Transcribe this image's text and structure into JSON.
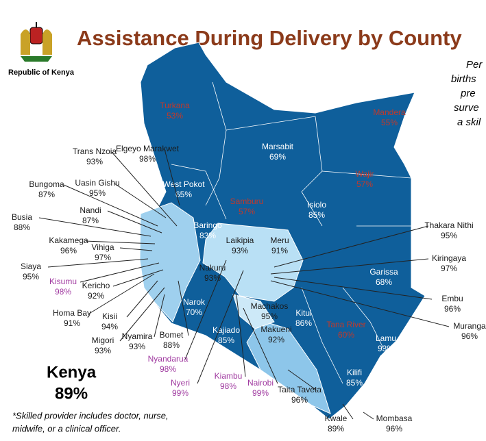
{
  "header": {
    "title": "Assistance During Delivery by County",
    "emblem_caption": "Republic of Kenya"
  },
  "side_note": [
    "Per",
    "births",
    "pre",
    "surve",
    "a skil"
  ],
  "national": {
    "name": "Kenya",
    "value": "89%"
  },
  "footnote": [
    "*Skilled provider includes doctor, nurse,",
    "midwife, or a clinical officer."
  ],
  "counties": [
    {
      "name": "Turkana",
      "value": "53%",
      "color": "#c0392b"
    },
    {
      "name": "Mandera",
      "value": "55%",
      "color": "#c0392b"
    },
    {
      "name": "Marsabit",
      "value": "69%",
      "color": "#ffffff"
    },
    {
      "name": "Wajir",
      "value": "57%",
      "color": "#c0392b"
    },
    {
      "name": "West Pokot",
      "value": "65%",
      "color": "#ffffff"
    },
    {
      "name": "Samburu",
      "value": "57%",
      "color": "#c0392b"
    },
    {
      "name": "Isiolo",
      "value": "85%",
      "color": "#ffffff"
    },
    {
      "name": "Baringo",
      "value": "83%",
      "color": "#ffffff"
    },
    {
      "name": "Laikipia",
      "value": "93%",
      "color": "#1a1a1a"
    },
    {
      "name": "Meru",
      "value": "91%",
      "color": "#1a1a1a"
    },
    {
      "name": "Nakuru",
      "value": "93%",
      "color": "#1a1a1a"
    },
    {
      "name": "Garissa",
      "value": "68%",
      "color": "#ffffff"
    },
    {
      "name": "Narok",
      "value": "70%",
      "color": "#ffffff"
    },
    {
      "name": "Machakos",
      "value": "95%",
      "color": "#1a1a1a"
    },
    {
      "name": "Kitui",
      "value": "86%",
      "color": "#ffffff"
    },
    {
      "name": "Tana River",
      "value": "60%",
      "color": "#c0392b"
    },
    {
      "name": "Makueni",
      "value": "92%",
      "color": "#1a1a1a"
    },
    {
      "name": "Kajiado",
      "value": "85%",
      "color": "#ffffff"
    },
    {
      "name": "Lamu",
      "value": "93%",
      "color": "#ffffff"
    },
    {
      "name": "Kilifi",
      "value": "85%",
      "color": "#ffffff"
    },
    {
      "name": "Trans Nzoia",
      "value": "93%",
      "color": "#1a1a1a"
    },
    {
      "name": "Elgeyo Marakwet",
      "value": "98%",
      "color": "#1a1a1a"
    },
    {
      "name": "Bungoma",
      "value": "87%",
      "color": "#1a1a1a"
    },
    {
      "name": "Uasin Gishu",
      "value": "95%",
      "color": "#1a1a1a"
    },
    {
      "name": "Nandi",
      "value": "87%",
      "color": "#1a1a1a"
    },
    {
      "name": "Busia",
      "value": "88%",
      "color": "#1a1a1a"
    },
    {
      "name": "Kakamega",
      "value": "96%",
      "color": "#1a1a1a"
    },
    {
      "name": "Vihiga",
      "value": "97%",
      "color": "#1a1a1a"
    },
    {
      "name": "Siaya",
      "value": "95%",
      "color": "#1a1a1a"
    },
    {
      "name": "Kisumu",
      "value": "98%",
      "color": "#a03aa0"
    },
    {
      "name": "Kericho",
      "value": "92%",
      "color": "#1a1a1a"
    },
    {
      "name": "Homa Bay",
      "value": "91%",
      "color": "#1a1a1a"
    },
    {
      "name": "Kisii",
      "value": "94%",
      "color": "#1a1a1a"
    },
    {
      "name": "Migori",
      "value": "93%",
      "color": "#1a1a1a"
    },
    {
      "name": "Nyamira",
      "value": "93%",
      "color": "#1a1a1a"
    },
    {
      "name": "Bomet",
      "value": "88%",
      "color": "#1a1a1a"
    },
    {
      "name": "Nyandarua",
      "value": "98%",
      "color": "#a03aa0"
    },
    {
      "name": "Nyeri",
      "value": "99%",
      "color": "#a03aa0"
    },
    {
      "name": "Kiambu",
      "value": "98%",
      "color": "#a03aa0"
    },
    {
      "name": "Nairobi",
      "value": "99%",
      "color": "#a03aa0"
    },
    {
      "name": "Taita Taveta",
      "value": "96%",
      "color": "#1a1a1a"
    },
    {
      "name": "Thakara Nithi",
      "value": "95%",
      "color": "#1a1a1a"
    },
    {
      "name": "Kiringaya",
      "value": "97%",
      "color": "#1a1a1a"
    },
    {
      "name": "Embu",
      "value": "96%",
      "color": "#1a1a1a"
    },
    {
      "name": "Muranga",
      "value": "96%",
      "color": "#1a1a1a"
    },
    {
      "name": "Kwale",
      "value": "89%",
      "color": "#1a1a1a"
    },
    {
      "name": "Mombasa",
      "value": "96%",
      "color": "#1a1a1a"
    }
  ]
}
